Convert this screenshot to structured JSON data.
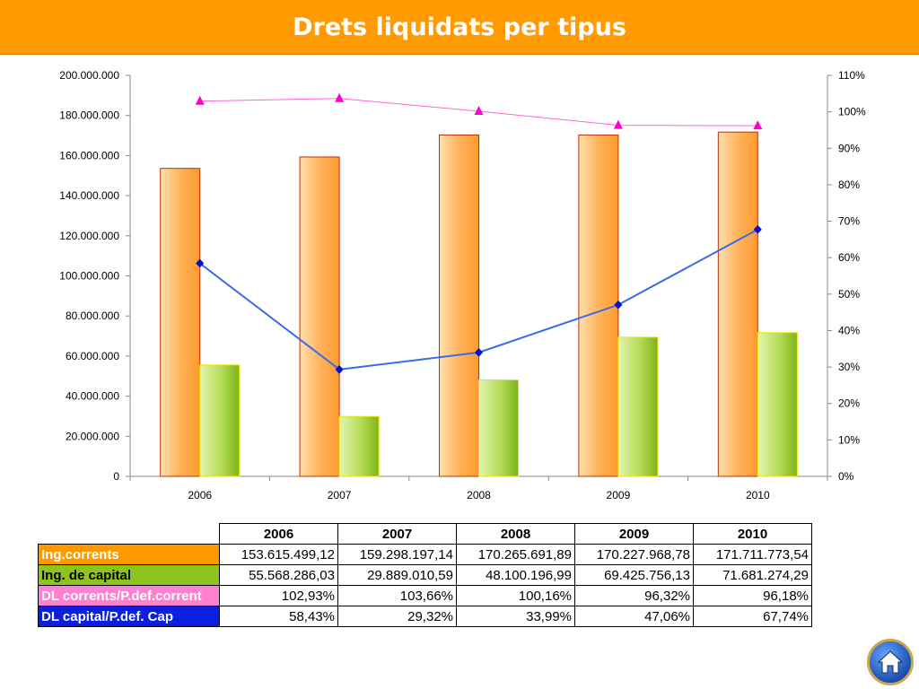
{
  "slide": {
    "title": "Drets liquidats per tipus"
  },
  "colors": {
    "ing_corrents": "#ff9900",
    "ing_capital": "#8fc41e",
    "dl_corrents": "#ff80d0",
    "dl_capital": "#3060f0"
  },
  "chart_data": {
    "type": "bar",
    "title": "",
    "categories": [
      "2006",
      "2007",
      "2008",
      "2009",
      "2010"
    ],
    "y_left": {
      "min": 0,
      "max": 200000000,
      "step": 20000000,
      "tick_labels": [
        "0",
        "20.000.000",
        "40.000.000",
        "60.000.000",
        "80.000.000",
        "100.000.000",
        "120.000.000",
        "140.000.000",
        "160.000.000",
        "180.000.000",
        "200.000.000"
      ]
    },
    "y_right": {
      "min": 0,
      "max": 1.1,
      "step": 0.1,
      "tick_labels": [
        "0%",
        "10%",
        "20%",
        "30%",
        "40%",
        "50%",
        "60%",
        "70%",
        "80%",
        "90%",
        "100%",
        "110%"
      ]
    },
    "series": [
      {
        "name": "Ing.corrents",
        "type": "bar",
        "axis": "left",
        "values": [
          153615499.12,
          159298197.14,
          170265691.89,
          170227968.78,
          171711773.54
        ]
      },
      {
        "name": "Ing. de capital",
        "type": "bar",
        "axis": "left",
        "values": [
          55568286.03,
          29889010.59,
          48100196.99,
          69425756.13,
          71681274.29
        ]
      },
      {
        "name": "DL corrents/P.def.corrent",
        "type": "line",
        "axis": "right",
        "marker": "triangle",
        "values": [
          1.0293,
          1.0366,
          1.0016,
          0.9632,
          0.9618
        ]
      },
      {
        "name": "DL capital/P.def. Cap",
        "type": "line",
        "axis": "right",
        "marker": "diamond",
        "values": [
          0.5843,
          0.2932,
          0.3399,
          0.4706,
          0.6774
        ]
      }
    ],
    "grid": false,
    "legend": "table-below"
  },
  "table": {
    "headers": [
      "2006",
      "2007",
      "2008",
      "2009",
      "2010"
    ],
    "rows": [
      {
        "label": "Ing.corrents",
        "values": [
          "153.615.499,12",
          "159.298.197,14",
          "170.265.691,89",
          "170.227.968,78",
          "171.711.773,54"
        ]
      },
      {
        "label": "Ing. de capital",
        "values": [
          "55.568.286,03",
          "29.889.010,59",
          "48.100.196,99",
          "69.425.756,13",
          "71.681.274,29"
        ]
      },
      {
        "label": "DL corrents/P.def.corrent",
        "values": [
          "102,93%",
          "103,66%",
          "100,16%",
          "96,32%",
          "96,18%"
        ]
      },
      {
        "label": "DL capital/P.def. Cap",
        "values": [
          "58,43%",
          "29,32%",
          "33,99%",
          "47,06%",
          "67,74%"
        ]
      }
    ]
  },
  "nav": {
    "home_icon": "home-icon"
  }
}
